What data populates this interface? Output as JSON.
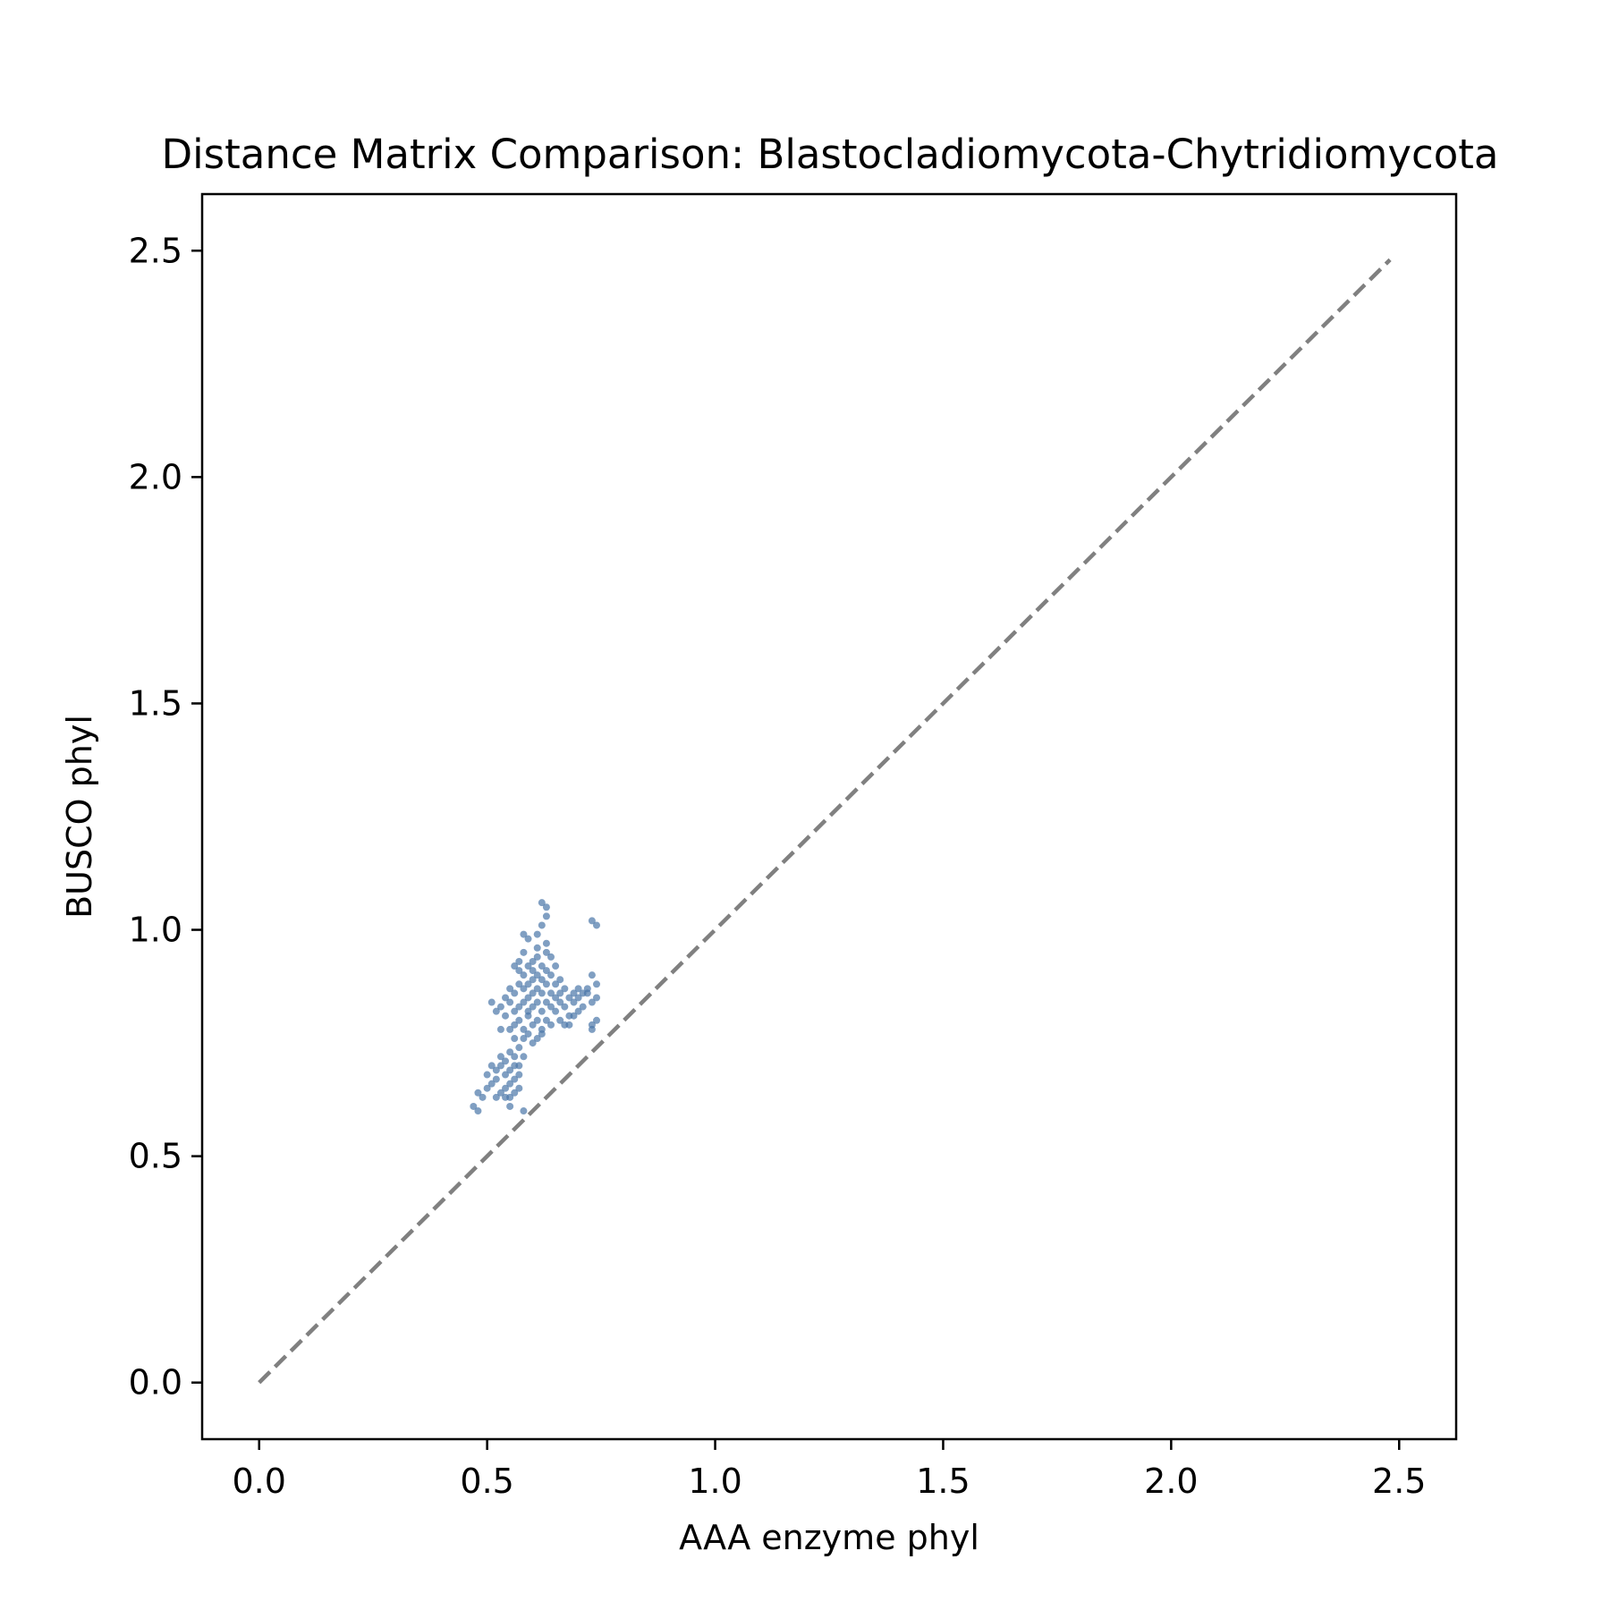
{
  "chart_data": {
    "type": "scatter",
    "title": "Distance Matrix Comparison: Blastocladiomycota-Chytridiomycota",
    "xlabel": "AAA enzyme phyl",
    "ylabel": "BUSCO phyl",
    "xlim": [
      -0.125,
      2.625
    ],
    "ylim": [
      -0.125,
      2.625
    ],
    "xticks": [
      "0.0",
      "0.5",
      "1.0",
      "1.5",
      "2.0",
      "2.5"
    ],
    "yticks": [
      "0.0",
      "0.5",
      "1.0",
      "1.5",
      "2.0",
      "2.5"
    ],
    "grid": false,
    "point_color": "#4a76a8",
    "reference_line": {
      "x": [
        0,
        2.48
      ],
      "y": [
        0,
        2.48
      ],
      "color": "#808080",
      "style": "dashed"
    },
    "series": [
      {
        "points": [
          [
            0.47,
            0.61
          ],
          [
            0.48,
            0.6
          ],
          [
            0.48,
            0.64
          ],
          [
            0.49,
            0.63
          ],
          [
            0.5,
            0.65
          ],
          [
            0.51,
            0.66
          ],
          [
            0.52,
            0.63
          ],
          [
            0.52,
            0.69
          ],
          [
            0.53,
            0.64
          ],
          [
            0.53,
            0.7
          ],
          [
            0.53,
            0.72
          ],
          [
            0.54,
            0.65
          ],
          [
            0.54,
            0.68
          ],
          [
            0.54,
            0.71
          ],
          [
            0.55,
            0.66
          ],
          [
            0.55,
            0.63
          ],
          [
            0.55,
            0.69
          ],
          [
            0.56,
            0.67
          ],
          [
            0.56,
            0.64
          ],
          [
            0.56,
            0.7
          ],
          [
            0.57,
            0.68
          ],
          [
            0.57,
            0.65
          ],
          [
            0.54,
            0.63
          ],
          [
            0.55,
            0.61
          ],
          [
            0.58,
            0.6
          ],
          [
            0.53,
            0.83
          ],
          [
            0.54,
            0.85
          ],
          [
            0.54,
            0.81
          ],
          [
            0.55,
            0.84
          ],
          [
            0.55,
            0.87
          ],
          [
            0.56,
            0.82
          ],
          [
            0.56,
            0.86
          ],
          [
            0.56,
            0.92
          ],
          [
            0.57,
            0.83
          ],
          [
            0.57,
            0.88
          ],
          [
            0.57,
            0.8
          ],
          [
            0.57,
            0.91
          ],
          [
            0.58,
            0.84
          ],
          [
            0.58,
            0.87
          ],
          [
            0.58,
            0.9
          ],
          [
            0.58,
            0.78
          ],
          [
            0.58,
            0.76
          ],
          [
            0.58,
            0.99
          ],
          [
            0.59,
            0.85
          ],
          [
            0.59,
            0.88
          ],
          [
            0.59,
            0.92
          ],
          [
            0.59,
            0.81
          ],
          [
            0.59,
            0.77
          ],
          [
            0.59,
            0.98
          ],
          [
            0.6,
            0.86
          ],
          [
            0.6,
            0.89
          ],
          [
            0.6,
            0.93
          ],
          [
            0.6,
            0.83
          ],
          [
            0.6,
            0.79
          ],
          [
            0.6,
            0.75
          ],
          [
            0.61,
            0.87
          ],
          [
            0.61,
            0.9
          ],
          [
            0.61,
            0.84
          ],
          [
            0.61,
            0.8
          ],
          [
            0.61,
            0.94
          ],
          [
            0.61,
            0.96
          ],
          [
            0.61,
            0.99
          ],
          [
            0.62,
            0.86
          ],
          [
            0.62,
            0.89
          ],
          [
            0.62,
            0.92
          ],
          [
            0.62,
            0.82
          ],
          [
            0.62,
            0.78
          ],
          [
            0.62,
            1.01
          ],
          [
            0.62,
            1.06
          ],
          [
            0.63,
            1.05
          ],
          [
            0.63,
            1.03
          ],
          [
            0.63,
            0.88
          ],
          [
            0.63,
            0.91
          ],
          [
            0.63,
            0.84
          ],
          [
            0.63,
            0.8
          ],
          [
            0.63,
            0.95
          ],
          [
            0.63,
            0.97
          ],
          [
            0.64,
            0.86
          ],
          [
            0.64,
            0.83
          ],
          [
            0.64,
            0.79
          ],
          [
            0.64,
            0.9
          ],
          [
            0.65,
            0.85
          ],
          [
            0.65,
            0.82
          ],
          [
            0.65,
            0.88
          ],
          [
            0.66,
            0.84
          ],
          [
            0.66,
            0.8
          ],
          [
            0.66,
            0.86
          ],
          [
            0.67,
            0.83
          ],
          [
            0.67,
            0.87
          ],
          [
            0.67,
            0.79
          ],
          [
            0.68,
            0.85
          ],
          [
            0.68,
            0.81
          ],
          [
            0.69,
            0.86
          ],
          [
            0.69,
            0.84
          ],
          [
            0.7,
            0.87
          ],
          [
            0.7,
            0.85
          ],
          [
            0.71,
            0.86
          ],
          [
            0.71,
            0.83
          ],
          [
            0.72,
            0.87
          ],
          [
            0.72,
            0.86
          ],
          [
            0.73,
            0.84
          ],
          [
            0.73,
            0.78
          ],
          [
            0.73,
            0.79
          ],
          [
            0.74,
            0.8
          ],
          [
            0.74,
            0.85
          ],
          [
            0.73,
            0.9
          ],
          [
            0.74,
            0.88
          ],
          [
            0.73,
            1.02
          ],
          [
            0.74,
            1.01
          ],
          [
            0.56,
            0.76
          ],
          [
            0.57,
            0.74
          ],
          [
            0.58,
            0.72
          ],
          [
            0.52,
            0.82
          ],
          [
            0.51,
            0.84
          ],
          [
            0.53,
            0.78
          ],
          [
            0.55,
            0.78
          ],
          [
            0.56,
            0.79
          ],
          [
            0.57,
            0.93
          ],
          [
            0.58,
            0.95
          ],
          [
            0.6,
            0.91
          ],
          [
            0.64,
            0.94
          ],
          [
            0.65,
            0.92
          ],
          [
            0.66,
            0.89
          ],
          [
            0.59,
            0.82
          ],
          [
            0.61,
            0.76
          ],
          [
            0.62,
            0.77
          ],
          [
            0.68,
            0.79
          ],
          [
            0.69,
            0.81
          ],
          [
            0.7,
            0.82
          ],
          [
            0.55,
            0.73
          ],
          [
            0.56,
            0.72
          ],
          [
            0.57,
            0.7
          ],
          [
            0.52,
            0.67
          ],
          [
            0.51,
            0.7
          ],
          [
            0.5,
            0.68
          ]
        ]
      }
    ]
  }
}
